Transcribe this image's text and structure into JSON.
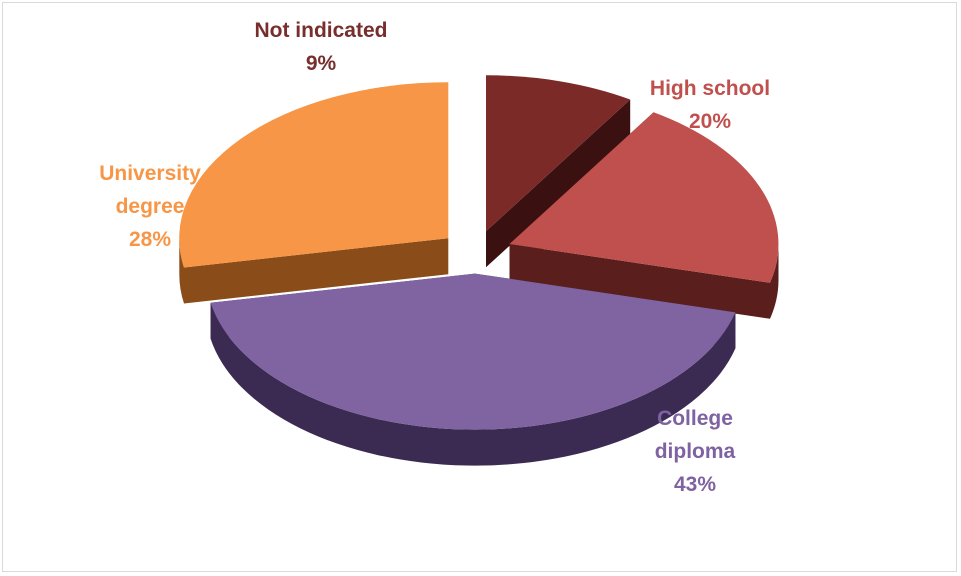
{
  "chart_data": {
    "type": "pie",
    "title": "",
    "slices": [
      {
        "name": "Not indicated",
        "label_lines": [
          "Not indicated",
          "9%"
        ],
        "value": 9,
        "color": "#7b2a28",
        "dark": "#3a1010",
        "label_color": "#772e2c"
      },
      {
        "name": "High school",
        "label_lines": [
          "High school",
          "20%"
        ],
        "value": 20,
        "color": "#c0504d",
        "dark": "#5a1f1d",
        "label_color": "#c0504d"
      },
      {
        "name": "College diploma",
        "label_lines": [
          "College",
          "diploma",
          "43%"
        ],
        "value": 43,
        "color": "#8064a2",
        "dark": "#3b2b52",
        "label_color": "#7f62a1"
      },
      {
        "name": "University degree",
        "label_lines": [
          "University",
          "degree",
          "28%"
        ],
        "value": 28,
        "color": "#f79646",
        "dark": "#8a4c18",
        "label_color": "#f79646"
      }
    ]
  }
}
